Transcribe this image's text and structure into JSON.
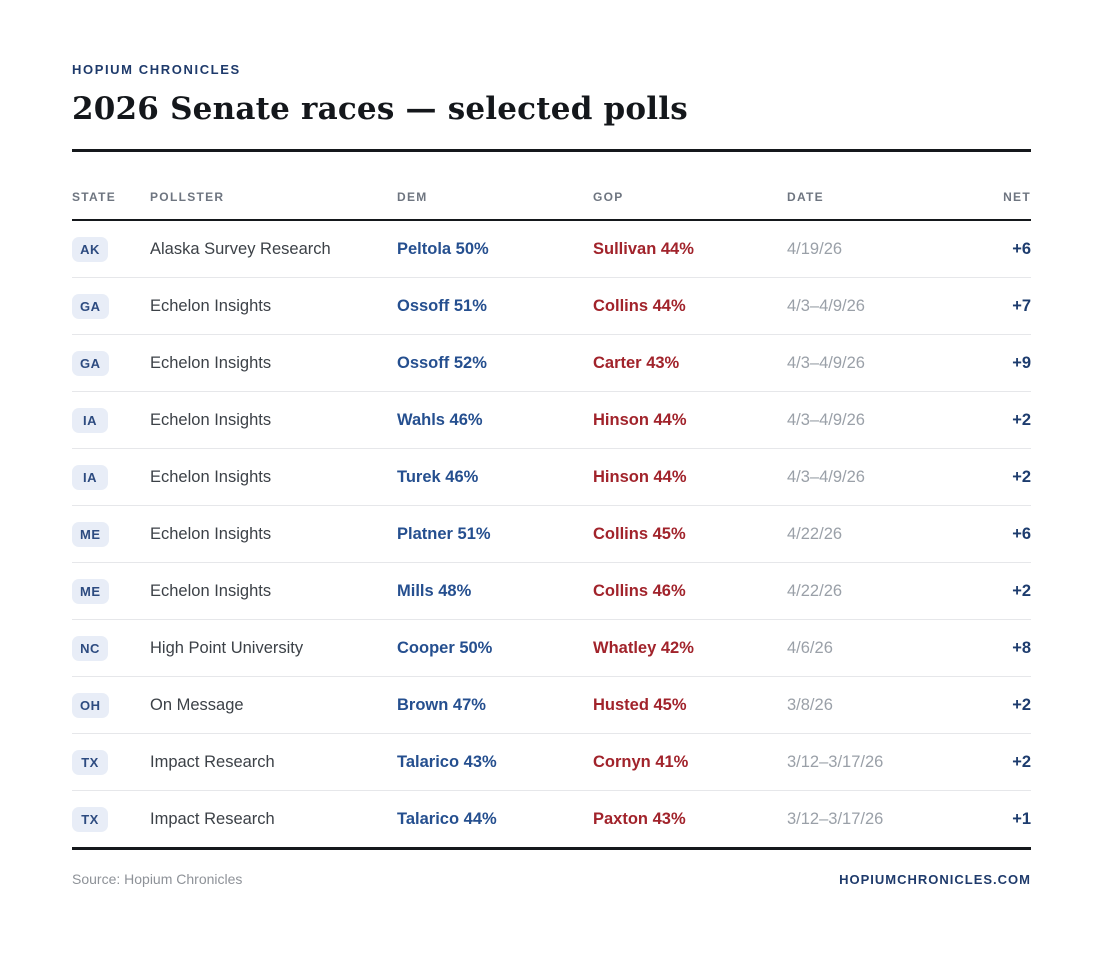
{
  "header": {
    "kicker": "HOPIUM CHRONICLES",
    "title": "2026 Senate races — selected polls"
  },
  "chart_data": {
    "type": "table",
    "title": "2026 Senate races — selected polls",
    "columns": [
      "STATE",
      "POLLSTER",
      "DEM",
      "GOP",
      "DATE",
      "NET"
    ],
    "rows": [
      {
        "state": "AK",
        "pollster": "Alaska Survey Research",
        "dem": "Peltola 50%",
        "gop": "Sullivan 44%",
        "date": "4/19/26",
        "net": "+6"
      },
      {
        "state": "GA",
        "pollster": "Echelon Insights",
        "dem": "Ossoff 51%",
        "gop": "Collins 44%",
        "date": "4/3–4/9/26",
        "net": "+7"
      },
      {
        "state": "GA",
        "pollster": "Echelon Insights",
        "dem": "Ossoff 52%",
        "gop": "Carter 43%",
        "date": "4/3–4/9/26",
        "net": "+9"
      },
      {
        "state": "IA",
        "pollster": "Echelon Insights",
        "dem": "Wahls 46%",
        "gop": "Hinson 44%",
        "date": "4/3–4/9/26",
        "net": "+2"
      },
      {
        "state": "IA",
        "pollster": "Echelon Insights",
        "dem": "Turek 46%",
        "gop": "Hinson 44%",
        "date": "4/3–4/9/26",
        "net": "+2"
      },
      {
        "state": "ME",
        "pollster": "Echelon Insights",
        "dem": "Platner 51%",
        "gop": "Collins 45%",
        "date": "4/22/26",
        "net": "+6"
      },
      {
        "state": "ME",
        "pollster": "Echelon Insights",
        "dem": "Mills 48%",
        "gop": "Collins 46%",
        "date": "4/22/26",
        "net": "+2"
      },
      {
        "state": "NC",
        "pollster": "High Point University",
        "dem": "Cooper 50%",
        "gop": "Whatley 42%",
        "date": "4/6/26",
        "net": "+8"
      },
      {
        "state": "OH",
        "pollster": "On Message",
        "dem": "Brown 47%",
        "gop": "Husted 45%",
        "date": "3/8/26",
        "net": "+2"
      },
      {
        "state": "TX",
        "pollster": "Impact Research",
        "dem": "Talarico 43%",
        "gop": "Cornyn 41%",
        "date": "3/12–3/17/26",
        "net": "+2"
      },
      {
        "state": "TX",
        "pollster": "Impact Research",
        "dem": "Talarico 44%",
        "gop": "Paxton 43%",
        "date": "3/12–3/17/26",
        "net": "+1"
      }
    ]
  },
  "footer": {
    "source": "Source: Hopium Chronicles",
    "site": "HOPIUMCHRONICLES.COM"
  },
  "colors": {
    "brand": "#1e3a6b",
    "dem": "#254f8f",
    "gop": "#a1232b",
    "net": "#1d3c6e",
    "badge_bg": "#e8edf7",
    "badge_text": "#2d4b80"
  }
}
